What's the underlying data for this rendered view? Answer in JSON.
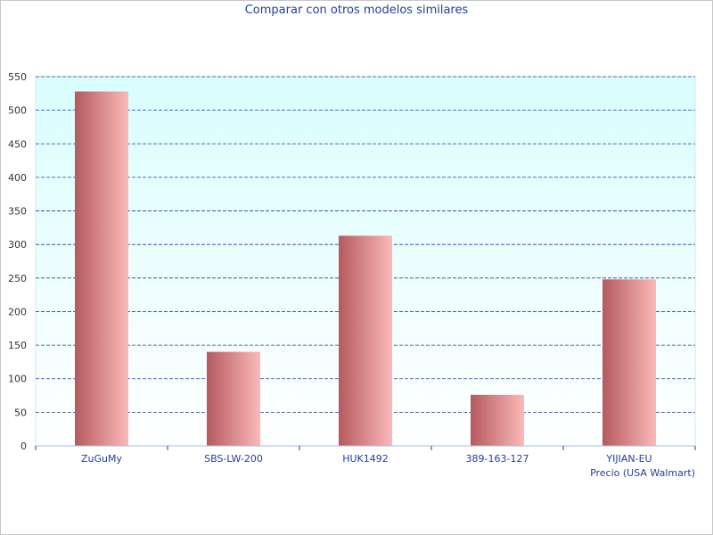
{
  "chart_data": {
    "type": "bar",
    "title": "Comparar con otros modelos similares",
    "categories": [
      "ZuGuMy",
      "SBS-LW-200",
      "HUK1492",
      "389-163-127",
      "YIJIAN-EU"
    ],
    "series": [
      {
        "name": "Precio (USA Walmart)",
        "values": [
          528,
          140,
          313,
          76,
          248
        ]
      }
    ],
    "xlabel": "",
    "ylabel": "",
    "ylim": [
      0,
      550
    ],
    "yticks": [
      0,
      50,
      100,
      150,
      200,
      250,
      300,
      350,
      400,
      450,
      500,
      550
    ],
    "grid": true,
    "legend": "bottom-right"
  },
  "colors": {
    "plot_bg_top": "#d9fdfe",
    "plot_bg_bottom": "#ffffff",
    "bar_dark": "#b55a5e",
    "bar_light": "#fcb9b9",
    "grid": "#2a3f8f",
    "text": "#1f3f9f"
  }
}
